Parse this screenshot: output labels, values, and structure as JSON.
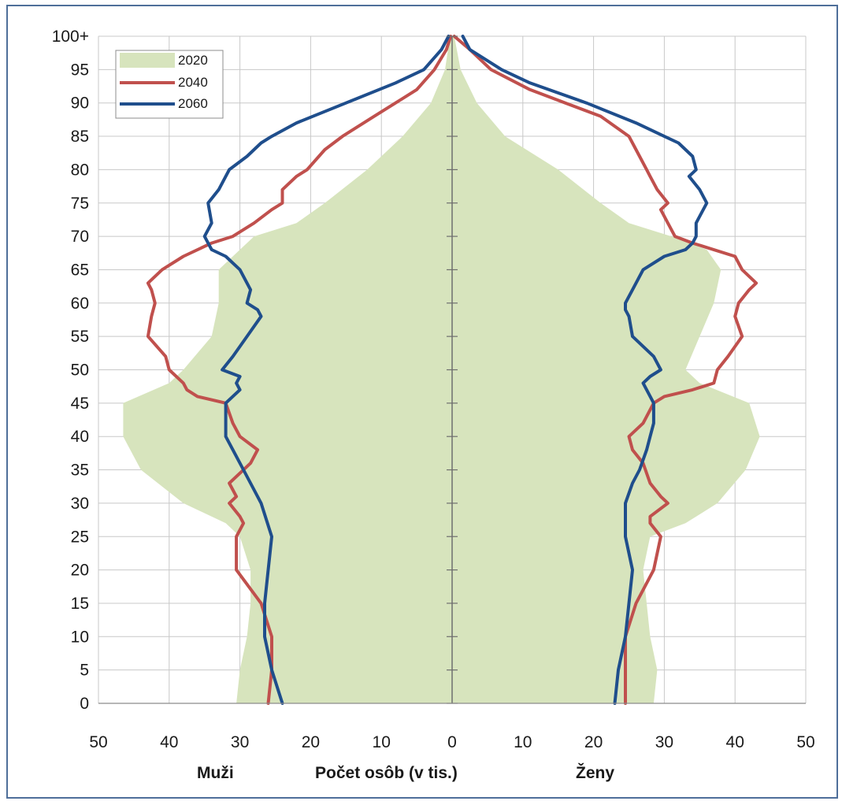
{
  "chart_data": {
    "type": "line",
    "xlabel": "Počet osôb (v tis.)",
    "xlabel_left": "Muži",
    "xlabel_right": "Ženy",
    "xlim": [
      -50,
      50
    ],
    "ylim": [
      0,
      100
    ],
    "x_ticks": [
      {
        "v": -50,
        "label": "50"
      },
      {
        "v": -40,
        "label": "40"
      },
      {
        "v": -30,
        "label": "30"
      },
      {
        "v": -20,
        "label": "20"
      },
      {
        "v": -10,
        "label": "10"
      },
      {
        "v": 0,
        "label": "0"
      },
      {
        "v": 10,
        "label": "10"
      },
      {
        "v": 20,
        "label": "20"
      },
      {
        "v": 30,
        "label": "30"
      },
      {
        "v": 40,
        "label": "40"
      },
      {
        "v": 50,
        "label": "50"
      }
    ],
    "y_ticks": [
      {
        "v": 0,
        "label": "0"
      },
      {
        "v": 5,
        "label": "5"
      },
      {
        "v": 10,
        "label": "10"
      },
      {
        "v": 15,
        "label": "15"
      },
      {
        "v": 20,
        "label": "20"
      },
      {
        "v": 25,
        "label": "25"
      },
      {
        "v": 30,
        "label": "30"
      },
      {
        "v": 35,
        "label": "35"
      },
      {
        "v": 40,
        "label": "40"
      },
      {
        "v": 45,
        "label": "45"
      },
      {
        "v": 50,
        "label": "50"
      },
      {
        "v": 55,
        "label": "55"
      },
      {
        "v": 60,
        "label": "60"
      },
      {
        "v": 65,
        "label": "65"
      },
      {
        "v": 70,
        "label": "70"
      },
      {
        "v": 75,
        "label": "75"
      },
      {
        "v": 80,
        "label": "80"
      },
      {
        "v": 85,
        "label": "85"
      },
      {
        "v": 90,
        "label": "90"
      },
      {
        "v": 95,
        "label": "95"
      },
      {
        "v": 100,
        "label": "100+"
      }
    ],
    "grid": true,
    "legend_position": "top-left",
    "series": [
      {
        "name": "2020",
        "kind": "area",
        "color": "#d7e4bd",
        "ages": [
          0,
          5,
          10,
          15,
          20,
          25,
          27,
          30,
          35,
          40,
          45,
          48,
          50,
          55,
          60,
          65,
          68,
          70,
          72,
          75,
          80,
          85,
          90,
          95,
          100
        ],
        "male": [
          30.5,
          30,
          29,
          28.5,
          28.5,
          30,
          32,
          38,
          44,
          46.5,
          46.5,
          40,
          38,
          34,
          33,
          33,
          30,
          28,
          22,
          18,
          12,
          7,
          3,
          1,
          0.3
        ],
        "female": [
          28.5,
          29,
          28,
          27.5,
          27,
          28,
          33,
          37.5,
          41.5,
          43.5,
          42,
          35,
          33,
          35,
          37,
          38,
          36,
          31,
          25,
          21,
          15,
          7.5,
          3.5,
          1.2,
          0.3
        ]
      },
      {
        "name": "2040",
        "kind": "line",
        "color": "#c0504d",
        "ages": [
          0,
          5,
          10,
          15,
          20,
          25,
          27,
          28,
          30,
          31,
          33,
          36,
          38,
          40,
          42,
          45,
          46,
          47,
          48,
          50,
          52,
          55,
          58,
          60,
          62,
          63,
          65,
          67,
          69,
          70,
          72,
          74,
          75,
          77,
          79,
          80,
          83,
          85,
          88,
          90,
          92,
          95,
          98,
          100
        ],
        "male": [
          26,
          25.5,
          25.5,
          27,
          30.5,
          30.5,
          29.5,
          30,
          31.5,
          30.5,
          31.5,
          28.5,
          27.5,
          30,
          31,
          32,
          36,
          37.5,
          38,
          40,
          40.5,
          43,
          42.5,
          42,
          42.5,
          43,
          41,
          38,
          34,
          31,
          28,
          25.5,
          24,
          24,
          22,
          20.5,
          18,
          15.5,
          11,
          8,
          5,
          2.5,
          0.8,
          0.2
        ],
        "female": [
          24.5,
          24.5,
          24.5,
          26,
          28.5,
          29.5,
          28,
          28,
          30.5,
          29.5,
          28,
          27,
          25.5,
          25,
          27,
          28.5,
          30,
          34,
          37,
          37.5,
          39,
          41,
          40,
          40.5,
          42,
          43,
          41,
          40,
          34,
          31.5,
          30.5,
          29.5,
          30.5,
          29,
          28,
          27.5,
          26,
          25,
          21,
          16,
          11,
          5.5,
          2.5,
          0.3
        ]
      },
      {
        "name": "2060",
        "kind": "line",
        "color": "#1f4e8c",
        "ages": [
          0,
          5,
          10,
          15,
          20,
          25,
          30,
          33,
          35,
          38,
          40,
          42,
          45,
          47,
          48,
          49,
          50,
          52,
          55,
          58,
          59,
          60,
          62,
          65,
          67,
          68,
          69,
          70,
          72,
          75,
          77,
          79,
          80,
          82,
          84,
          85,
          87,
          90,
          93,
          95,
          98,
          100
        ],
        "male": [
          24,
          25.5,
          26.5,
          26.5,
          26,
          25.5,
          27,
          28.5,
          29.5,
          31,
          32,
          32,
          32,
          30,
          30.5,
          30,
          32.5,
          31,
          29,
          27,
          27.5,
          29,
          28.5,
          30,
          32,
          34,
          34.5,
          35,
          34,
          34.5,
          33,
          32,
          31.5,
          29,
          27,
          25.5,
          22,
          15,
          8,
          4,
          1.5,
          0.5
        ],
        "female": [
          23,
          23.5,
          24.5,
          25,
          25.5,
          24.5,
          24.5,
          25.5,
          26.5,
          27.5,
          28,
          28.5,
          28.5,
          27.5,
          27,
          28,
          29.5,
          28.5,
          25.5,
          25,
          24.5,
          24.5,
          25.5,
          27,
          30,
          33,
          34,
          34.5,
          34.5,
          36,
          35,
          33.5,
          34.5,
          34,
          32,
          30,
          26,
          19,
          11,
          7,
          2.5,
          1.5
        ]
      }
    ]
  }
}
